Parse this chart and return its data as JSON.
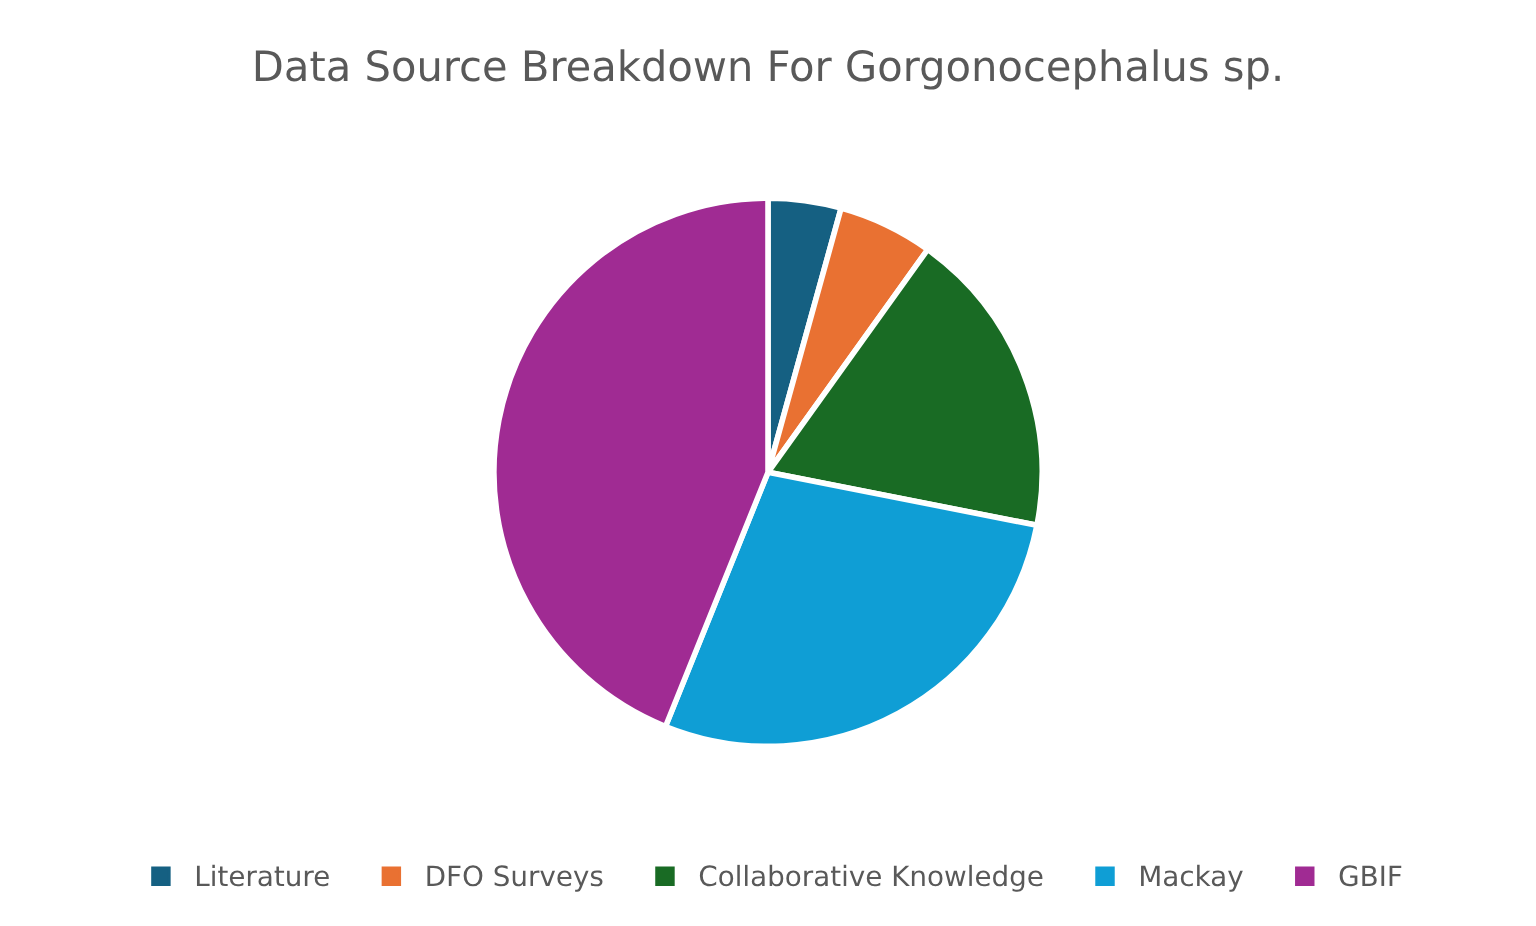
{
  "chart_data": {
    "type": "pie",
    "title": "Data Source Breakdown For Gorgonocephalus sp.",
    "categories": [
      "Literature",
      "DFO Surveys",
      "Collaborative Knowledge",
      "Mackay",
      "GBIF"
    ],
    "values": [
      4.3,
      5.6,
      18.2,
      28.0,
      43.9
    ],
    "colors": [
      "#156082",
      "#e97132",
      "#196b24",
      "#0f9ed5",
      "#a02b93"
    ],
    "legend": "bottom"
  }
}
